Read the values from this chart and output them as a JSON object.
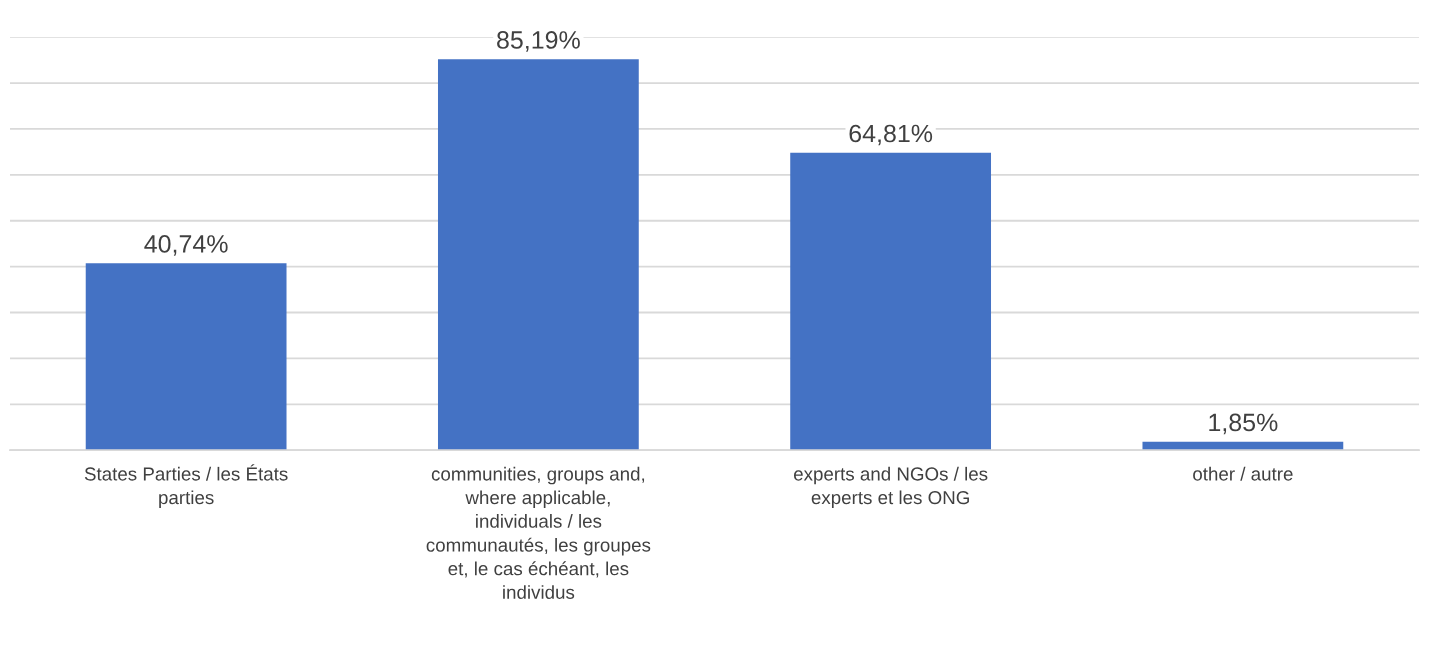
{
  "chart_data": {
    "type": "bar",
    "categories": [
      "States Parties / les États parties",
      "communities, groups and, where applicable, individuals / les communautés, les groupes et, le cas échéant, les individus",
      "experts and NGOs / les experts et les ONG",
      "other / autre"
    ],
    "values": [
      40.74,
      85.19,
      64.81,
      1.85
    ],
    "value_labels": [
      "40,74%",
      "85,19%",
      "64,81%",
      "1,85%"
    ],
    "color": "#4472c4",
    "ylim": [
      0,
      90
    ],
    "yticks": [
      {
        "value": 0,
        "label": null
      },
      {
        "value": 10,
        "label": null
      },
      {
        "value": 20,
        "label": null
      },
      {
        "value": 30,
        "label": null
      },
      {
        "value": 40,
        "label": null
      },
      {
        "value": 50,
        "label": null
      },
      {
        "value": 60,
        "label": null
      },
      {
        "value": 70,
        "label": null
      },
      {
        "value": 80,
        "label": null
      },
      {
        "value": 90,
        "label": null
      }
    ],
    "grid": "y",
    "legend": false,
    "tick_labels": "x"
  }
}
